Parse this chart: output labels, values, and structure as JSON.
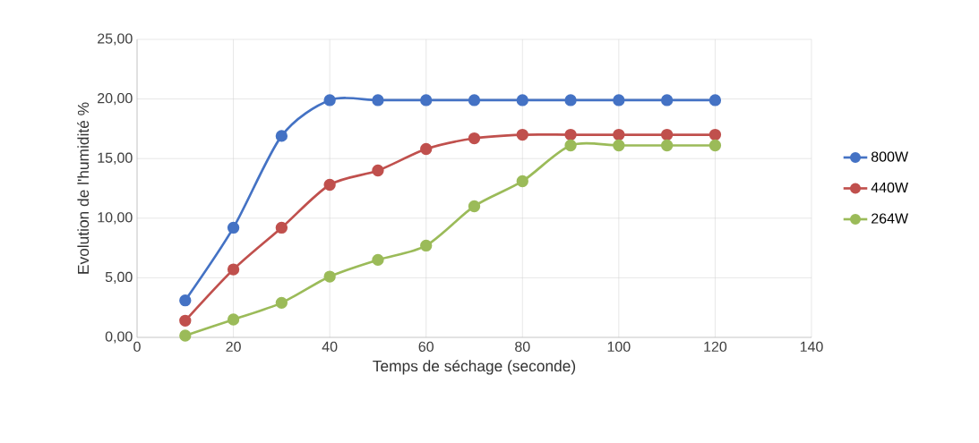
{
  "chart_data": {
    "type": "line",
    "xlabel": "Temps de séchage (seconde)",
    "ylabel": "Evolution de l'humidité %",
    "x": [
      10,
      20,
      30,
      40,
      50,
      60,
      70,
      80,
      90,
      100,
      110,
      120
    ],
    "series": [
      {
        "name": "800W",
        "color": "#4472c4",
        "values": [
          3.1,
          9.2,
          16.9,
          19.9,
          19.9,
          19.9,
          19.9,
          19.9,
          19.9,
          19.9,
          19.9,
          19.9
        ]
      },
      {
        "name": "440W",
        "color": "#c0504d",
        "values": [
          1.4,
          5.7,
          9.2,
          12.8,
          14.0,
          15.8,
          16.7,
          17.0,
          17.0,
          17.0,
          17.0,
          17.0
        ]
      },
      {
        "name": "264W",
        "color": "#9bbb59",
        "values": [
          0.15,
          1.5,
          2.9,
          5.1,
          6.5,
          7.7,
          11.0,
          13.1,
          16.1,
          16.1,
          16.1,
          16.1
        ]
      }
    ],
    "xlim": [
      0,
      140
    ],
    "xticks": [
      0,
      20,
      40,
      60,
      80,
      100,
      120,
      140
    ],
    "ylim": [
      0,
      25
    ],
    "yticks": [
      {
        "value": 0,
        "label": "0,00"
      },
      {
        "value": 5,
        "label": "5,00"
      },
      {
        "value": 10,
        "label": "10,00"
      },
      {
        "value": 15,
        "label": "15,00"
      },
      {
        "value": 20,
        "label": "20,00"
      },
      {
        "value": 25,
        "label": "25,00"
      }
    ],
    "grid": true,
    "legend": "right",
    "marker": "circle"
  }
}
